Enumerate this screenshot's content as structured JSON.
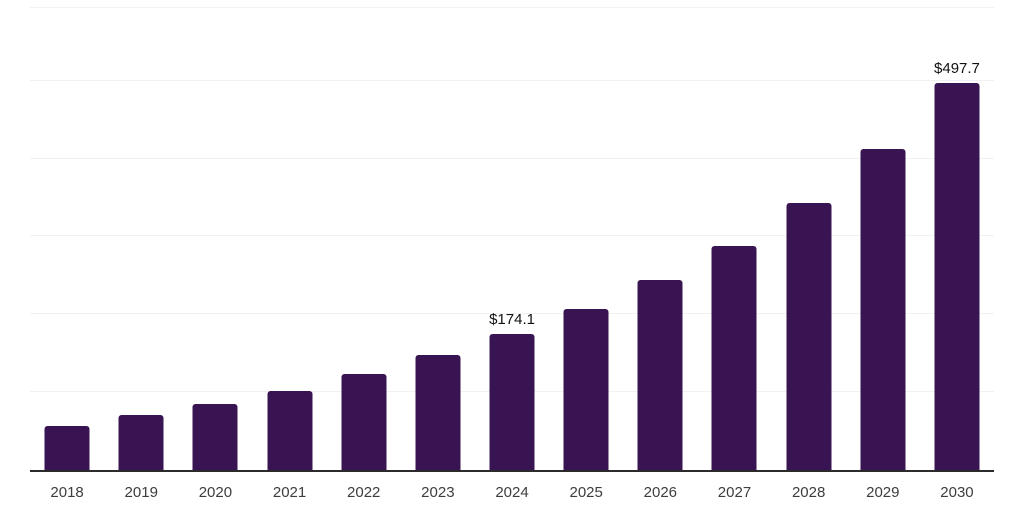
{
  "chart_data": {
    "type": "bar",
    "title": "",
    "xlabel": "",
    "ylabel": "",
    "categories": [
      "2018",
      "2019",
      "2020",
      "2021",
      "2022",
      "2023",
      "2024",
      "2025",
      "2026",
      "2027",
      "2028",
      "2029",
      "2030"
    ],
    "values": [
      56.4,
      70.1,
      84.2,
      101.3,
      123.7,
      147.5,
      174.1,
      206.9,
      244.3,
      288.4,
      342.7,
      412.6,
      497.7
    ],
    "value_prefix": "$",
    "annotations": [
      {
        "category_index": 6,
        "text": "$174.1"
      },
      {
        "category_index": 12,
        "text": "$497.7"
      }
    ],
    "ylim": [
      0,
      600
    ],
    "y_gridlines": [
      100,
      200,
      300,
      400,
      500
    ],
    "grid": true,
    "legend": false,
    "y_tick_labels_visible": false
  },
  "colors": {
    "bar": "#381552",
    "axis": "#2b2b2b",
    "gridline": "#f1f1f1",
    "tick_label": "#3d3d3d",
    "value_label": "#111111",
    "background": "#ffffff"
  }
}
